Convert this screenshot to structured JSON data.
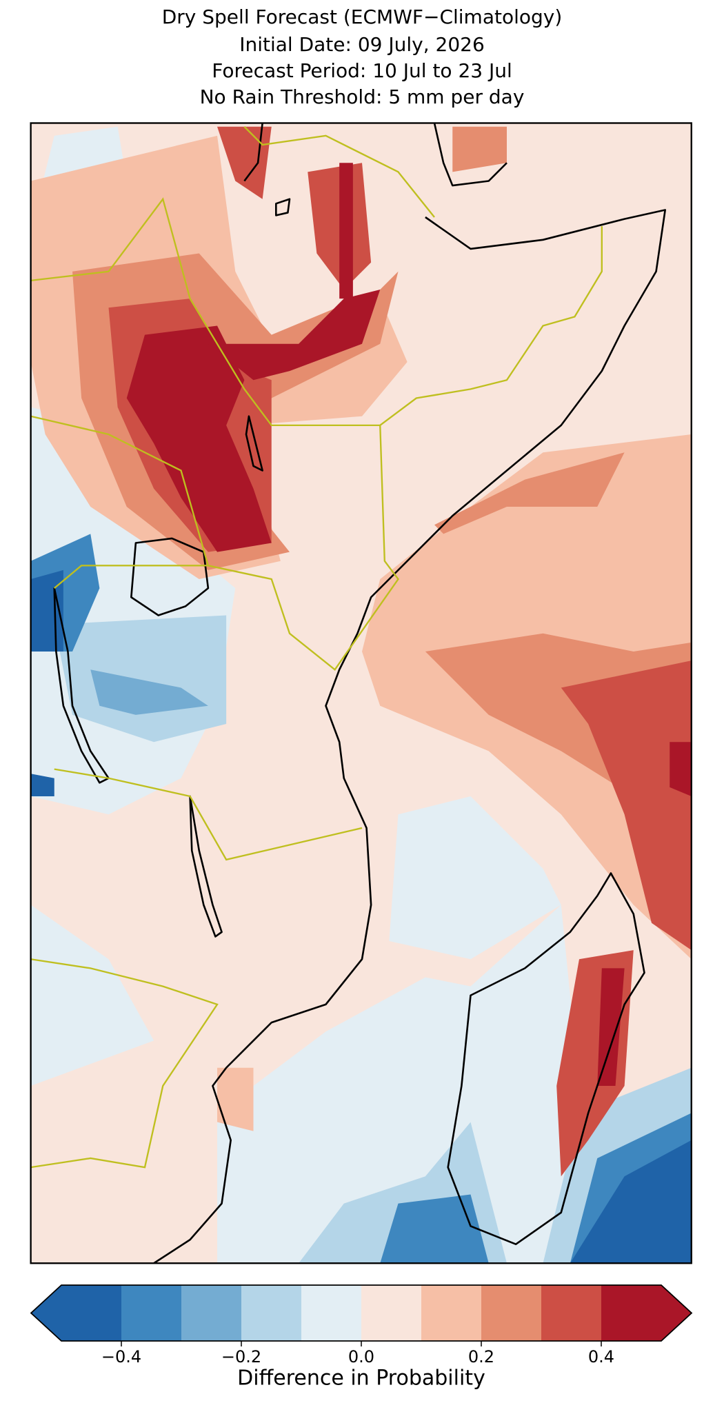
{
  "title_lines": [
    "Dry Spell Forecast (ECMWF−Climatology)",
    "Initial Date: 09 July, 2026",
    "Forecast Period: 10 Jul to 23 Jul",
    "No Rain Threshold: 5 mm per day"
  ],
  "colorbar": {
    "label": "Difference in Probability",
    "boundaries": [
      -0.5,
      -0.4,
      -0.3,
      -0.2,
      -0.1,
      0,
      0.1,
      0.2,
      0.3,
      0.4,
      0.5
    ],
    "colors": [
      "#1f63a8",
      "#3e87bf",
      "#74acd2",
      "#b4d5e8",
      "#e3eef4",
      "#f9e5dc",
      "#f6bfa6",
      "#e58d6f",
      "#cd4f45",
      "#aa1628"
    ],
    "extend": "both",
    "ticks": [
      {
        "value": -0.4,
        "label": "−0.4"
      },
      {
        "value": -0.2,
        "label": "−0.2"
      },
      {
        "value": 0,
        "label": "0.0"
      },
      0.2,
      0.4
    ]
  }
}
